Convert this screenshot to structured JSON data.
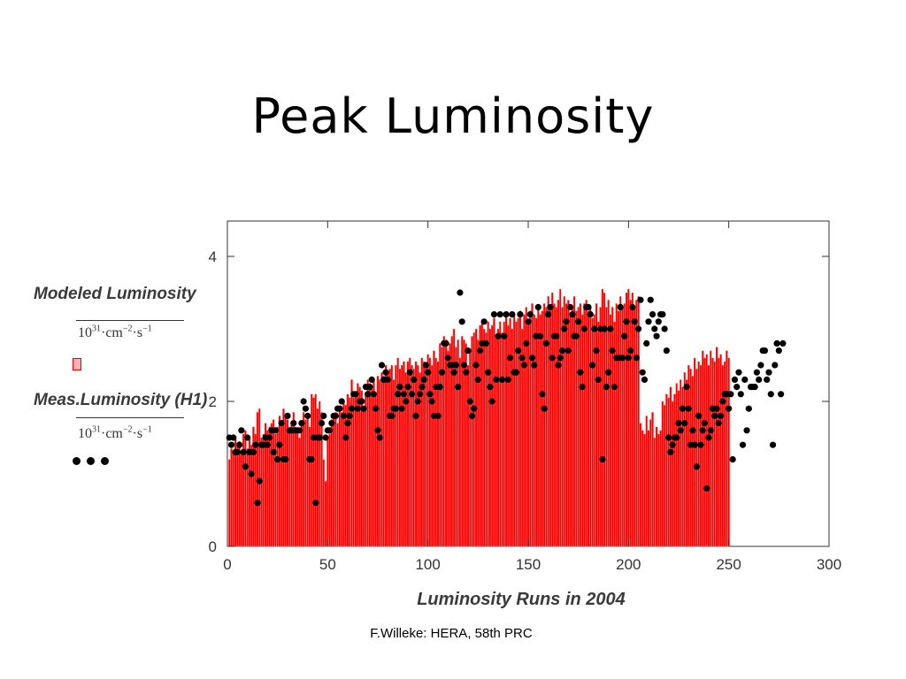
{
  "slide": {
    "title": "Peak Luminosity",
    "footer": "F.Willeke: HERA, 58th PRC"
  },
  "legend": {
    "modeled_label": "Modeled Luminosity",
    "measured_label": "Meas.Luminosity (H1)",
    "unit_base": "10",
    "unit_exp": "31",
    "unit_rest": "·cm",
    "unit_exp2": "−2",
    "unit_rest2": "·s",
    "unit_exp3": "−1"
  },
  "chart_data": {
    "type": "bar",
    "title": "",
    "xlabel": "Luminosity Runs in 2004",
    "ylabel": "",
    "xlim": [
      0,
      300
    ],
    "ylim": [
      0,
      4.4
    ],
    "x_ticks": [
      0,
      50,
      100,
      150,
      200,
      250,
      300
    ],
    "y_ticks": [
      0,
      2,
      4
    ],
    "series": [
      {
        "name": "Modeled Luminosity",
        "style": "bars",
        "color": "#ff0000",
        "x_start": 1,
        "values": [
          1.2,
          1.35,
          1.3,
          1.5,
          1.4,
          1.45,
          1.3,
          1.55,
          1.6,
          1.35,
          1.5,
          1.4,
          1.65,
          1.55,
          1.85,
          1.9,
          1.5,
          1.55,
          1.7,
          1.6,
          1.65,
          1.7,
          1.75,
          1.55,
          1.65,
          1.8,
          1.7,
          1.9,
          1.8,
          1.75,
          1.6,
          1.7,
          1.85,
          1.65,
          1.6,
          1.5,
          1.7,
          1.85,
          1.75,
          1.8,
          1.65,
          2.1,
          2.05,
          2.1,
          1.9,
          2.0,
          1.85,
          1.2,
          0.9,
          1.5,
          1.55,
          1.75,
          1.8,
          1.85,
          1.7,
          1.9,
          1.85,
          2.0,
          1.95,
          2.1,
          2.05,
          2.3,
          2.05,
          2.1,
          2.25,
          2.2,
          2.15,
          1.9,
          2.1,
          2.3,
          2.25,
          2.2,
          2.3,
          2.1,
          2.35,
          2.3,
          2.4,
          2.35,
          2.5,
          2.4,
          2.45,
          2.5,
          2.3,
          2.5,
          2.6,
          2.45,
          2.5,
          2.55,
          2.4,
          2.55,
          2.6,
          2.5,
          2.45,
          2.55,
          2.5,
          2.4,
          2.6,
          2.55,
          2.5,
          2.65,
          2.6,
          2.5,
          2.7,
          2.6,
          2.55,
          2.8,
          2.75,
          2.9,
          2.85,
          2.7,
          2.8,
          2.9,
          3.0,
          2.75,
          2.85,
          2.6,
          2.9,
          2.85,
          2.8,
          2.5,
          2.7,
          2.9,
          2.95,
          3.0,
          2.85,
          3.05,
          3.1,
          3.0,
          2.95,
          3.1,
          3.0,
          3.05,
          3.15,
          2.9,
          3.0,
          3.1,
          2.95,
          3.1,
          3.2,
          3.05,
          3.15,
          3.0,
          3.2,
          3.1,
          3.15,
          3.25,
          3.0,
          3.2,
          3.3,
          3.1,
          3.25,
          3.35,
          3.2,
          3.15,
          3.3,
          3.2,
          3.25,
          3.35,
          3.3,
          3.45,
          3.3,
          3.5,
          3.35,
          3.3,
          3.4,
          3.55,
          3.3,
          3.45,
          3.35,
          3.4,
          3.2,
          3.3,
          3.45,
          3.25,
          3.3,
          3.35,
          3.2,
          3.35,
          3.4,
          3.25,
          3.3,
          3.15,
          3.2,
          3.35,
          3.1,
          3.3,
          3.55,
          3.5,
          3.3,
          3.4,
          3.2,
          3.3,
          3.1,
          3.35,
          3.25,
          3.45,
          3.3,
          3.35,
          3.5,
          3.55,
          3.4,
          3.5,
          3.3,
          3.4,
          3.45,
          1.7,
          1.6,
          1.55,
          1.8,
          1.6,
          1.75,
          1.85,
          1.5,
          1.65,
          1.55,
          1.6,
          2.0,
          1.95,
          2.1,
          2.05,
          2.2,
          2.0,
          2.1,
          2.25,
          2.15,
          2.3,
          2.2,
          2.4,
          2.3,
          2.5,
          2.45,
          2.35,
          2.6,
          2.45,
          2.55,
          2.5,
          2.7,
          2.6,
          2.65,
          2.5,
          2.7,
          2.6,
          2.55,
          2.75,
          2.6,
          2.65,
          2.5,
          2.55,
          2.7,
          2.6
        ]
      },
      {
        "name": "Meas.Luminosity (H1)",
        "style": "dots",
        "color": "#000000",
        "x_start": 1,
        "values": [
          1.5,
          1.4,
          1.5,
          1.3,
          1.3,
          1.4,
          1.6,
          1.3,
          1.1,
          1.5,
          1.3,
          1.0,
          1.3,
          1.4,
          0.6,
          0.9,
          1.4,
          1.4,
          1.5,
          1.4,
          1.5,
          1.6,
          1.3,
          1.6,
          1.2,
          1.4,
          1.7,
          1.2,
          1.2,
          1.8,
          1.6,
          1.6,
          1.7,
          1.6,
          1.6,
          1.6,
          1.7,
          2.0,
          1.9,
          1.8,
          1.2,
          1.2,
          1.5,
          0.6,
          1.5,
          1.5,
          1.7,
          1.8,
          1.5,
          1.6,
          1.6,
          1.7,
          1.8,
          1.8,
          1.9,
          1.9,
          2.0,
          1.8,
          1.5,
          1.7,
          1.8,
          1.9,
          2.1,
          2.1,
          1.9,
          2.0,
          2.0,
          1.9,
          2.2,
          2.1,
          2.2,
          2.3,
          2.1,
          1.9,
          1.6,
          1.5,
          2.5,
          2.3,
          2.4,
          2.3,
          1.8,
          1.8,
          1.9,
          1.9,
          2.1,
          2.2,
          1.9,
          2.1,
          2.0,
          2.2,
          2.4,
          2.1,
          2.3,
          1.8,
          2.0,
          2.1,
          2.2,
          2.3,
          2.5,
          2.4,
          2.1,
          2.0,
          1.8,
          2.2,
          1.8,
          2.2,
          2.4,
          2.8,
          2.8,
          2.6,
          2.5,
          2.5,
          2.4,
          2.5,
          2.2,
          3.5,
          3.1,
          2.5,
          2.4,
          2.7,
          2.0,
          1.8,
          1.9,
          2.5,
          2.3,
          2.7,
          2.8,
          3.1,
          2.8,
          2.4,
          2.2,
          2.0,
          3.2,
          2.3,
          2.9,
          3.2,
          2.3,
          2.9,
          3.2,
          2.3,
          2.6,
          3.2,
          2.4,
          2.4,
          2.7,
          3.2,
          2.6,
          2.5,
          2.8,
          3.1,
          3.2,
          2.6,
          2.5,
          2.9,
          3.3,
          2.9,
          2.1,
          1.9,
          2.8,
          3.2,
          3.3,
          2.6,
          2.9,
          2.9,
          2.5,
          2.6,
          2.7,
          3.0,
          3.1,
          2.7,
          3.3,
          3.2,
          2.9,
          2.9,
          3.1,
          2.4,
          2.2,
          3.0,
          3.3,
          3.3,
          3.2,
          2.5,
          3.0,
          2.7,
          2.3,
          3.0,
          1.2,
          3.0,
          2.2,
          2.4,
          3.0,
          2.7,
          2.2,
          2.6,
          2.6,
          3.3,
          2.6,
          2.9,
          3.1,
          2.6,
          2.7,
          3.3,
          3.1,
          2.6,
          3.0,
          3.4,
          2.4,
          2.3,
          2.8,
          3.1,
          3.4,
          3.2,
          3.0,
          2.9,
          3.1,
          3.2,
          3.2,
          3.0,
          2.7,
          1.5,
          1.3,
          1.4,
          1.5,
          1.5,
          1.7,
          1.6,
          1.9,
          1.7,
          2.2,
          1.9,
          1.4,
          1.6,
          1.4,
          1.1,
          1.8,
          1.4,
          1.6,
          1.7,
          0.8,
          1.5,
          1.6,
          1.9,
          1.8,
          1.9,
          1.7,
          1.8,
          2.0,
          2.1,
          2.1,
          1.9,
          2.1,
          1.2,
          2.3,
          2.2,
          2.4,
          2.1,
          1.4,
          2.3,
          1.6,
          1.9,
          2.2,
          2.2,
          2.2,
          2.4,
          2.3,
          2.5,
          2.7,
          2.7,
          2.3,
          2.4,
          2.1,
          1.4,
          2.5,
          2.8,
          2.7,
          2.1,
          2.8
        ]
      }
    ]
  }
}
